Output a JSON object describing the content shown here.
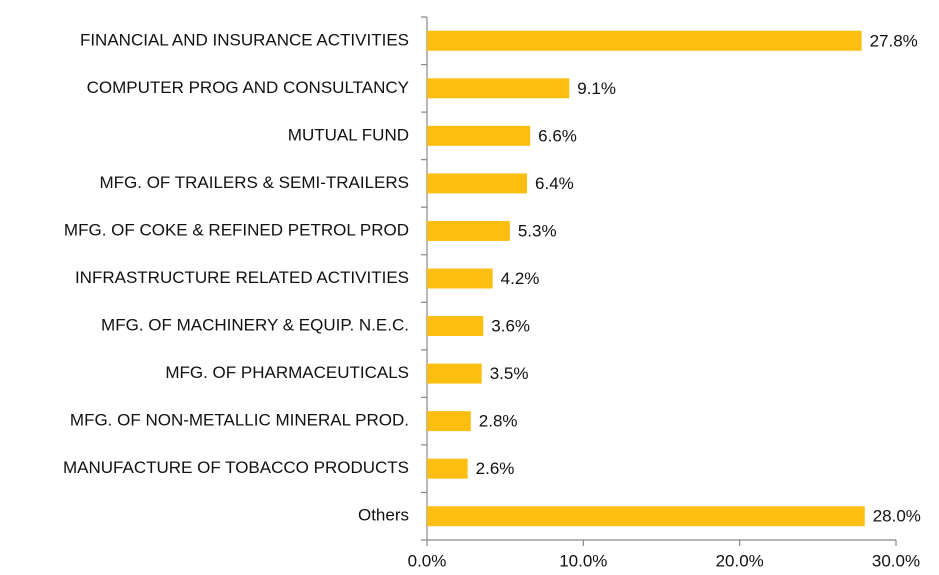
{
  "chart_data": {
    "type": "hbar",
    "categories": [
      "FINANCIAL AND INSURANCE ACTIVITIES",
      "COMPUTER PROG AND CONSULTANCY",
      "MUTUAL FUND",
      "MFG. OF TRAILERS & SEMI-TRAILERS",
      "MFG. OF COKE & REFINED PETROL PROD",
      "INFRASTRUCTURE RELATED ACTIVITIES",
      "MFG. OF MACHINERY & EQUIP. N.E.C.",
      "MFG. OF PHARMACEUTICALS",
      "MFG. OF NON-METALLIC MINERAL PROD.",
      "MANUFACTURE OF TOBACCO PRODUCTS",
      "Others"
    ],
    "values": [
      27.8,
      9.1,
      6.6,
      6.4,
      5.3,
      4.2,
      3.6,
      3.5,
      2.8,
      2.6,
      28.0
    ],
    "value_labels": [
      "27.8%",
      "9.1%",
      "6.6%",
      "6.4%",
      "5.3%",
      "4.2%",
      "3.6%",
      "3.5%",
      "2.8%",
      "2.6%",
      "28.0%"
    ],
    "color": "#fdbe12",
    "xlim": [
      0,
      30
    ],
    "xticks": [
      {
        "value": 0,
        "label": "0.0%"
      },
      {
        "value": 10,
        "label": "10.0%"
      },
      {
        "value": 20,
        "label": "20.0%"
      },
      {
        "value": 30,
        "label": "30.0%"
      }
    ]
  }
}
